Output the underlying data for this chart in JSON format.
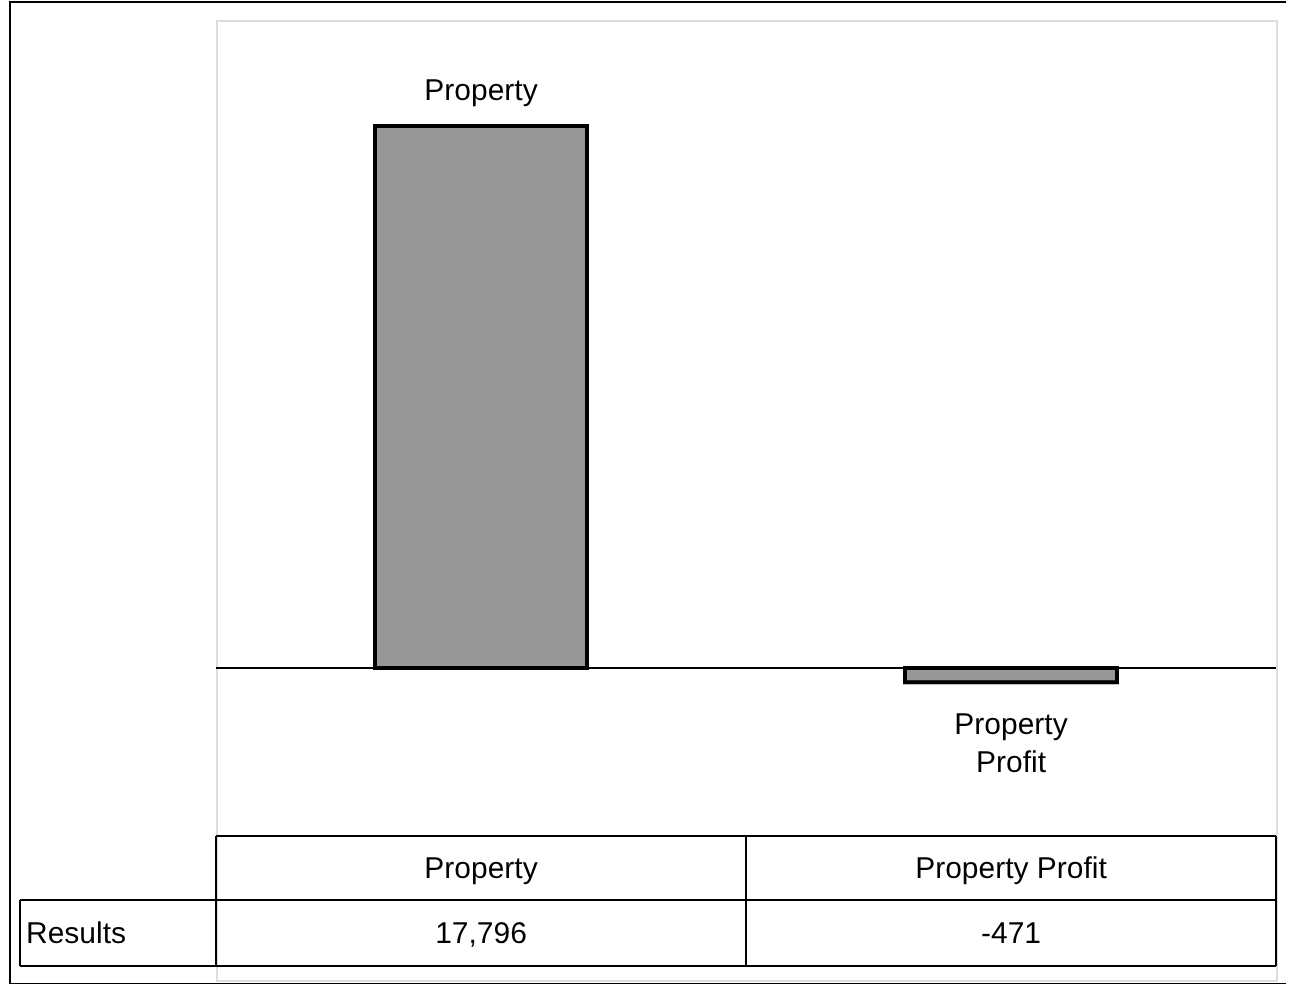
{
  "chart_data": {
    "type": "bar",
    "categories": [
      "Property",
      "Property Profit"
    ],
    "series": [
      {
        "name": "Results",
        "color": "#969696",
        "values": [
          17796,
          -471
        ],
        "value_labels": [
          "17,796",
          "-471"
        ]
      }
    ]
  }
}
